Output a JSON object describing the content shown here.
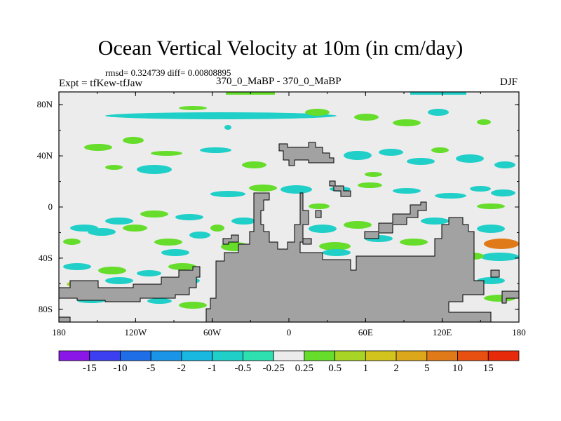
{
  "chart_data": {
    "type": "heatmap",
    "title": "Ocean Vertical Velocity at 10m (in cm/day)",
    "stats_line": "rmsd= 0.324739 diff= 0.00808895",
    "left_string": "Expt = tfKew-tfJaw",
    "center_string": "370_0_MaBP - 370_0_MaBP",
    "right_string": "DJF",
    "x_ticks": [
      "180",
      "120W",
      "60W",
      "0",
      "60E",
      "120E",
      "180"
    ],
    "y_ticks": [
      "80N",
      "40N",
      "0",
      "40S",
      "80S"
    ],
    "xlim": [
      -180,
      180
    ],
    "ylim": [
      -90,
      90
    ],
    "levels": [
      -15,
      -10,
      -5,
      -2,
      -1,
      -0.5,
      -0.25,
      0.25,
      0.5,
      1,
      2,
      5,
      10,
      15
    ],
    "level_labels": [
      "-15",
      "-10",
      "-5",
      "-2",
      "-1",
      "-0.5",
      "-0.25",
      "0.25",
      "0.5",
      "1",
      "2",
      "5",
      "10",
      "15"
    ],
    "colors": [
      "#8a17e8",
      "#3c3ff0",
      "#1f6ee8",
      "#1994e6",
      "#19b8e0",
      "#20cfc8",
      "#2ee0b0",
      "#ececec",
      "#66dd2a",
      "#a8d426",
      "#d2c41c",
      "#dca71a",
      "#e07a18",
      "#e85012",
      "#e62a0a"
    ],
    "land_color": "#a2a2a2",
    "background_color": "#ececec",
    "grid": false
  }
}
